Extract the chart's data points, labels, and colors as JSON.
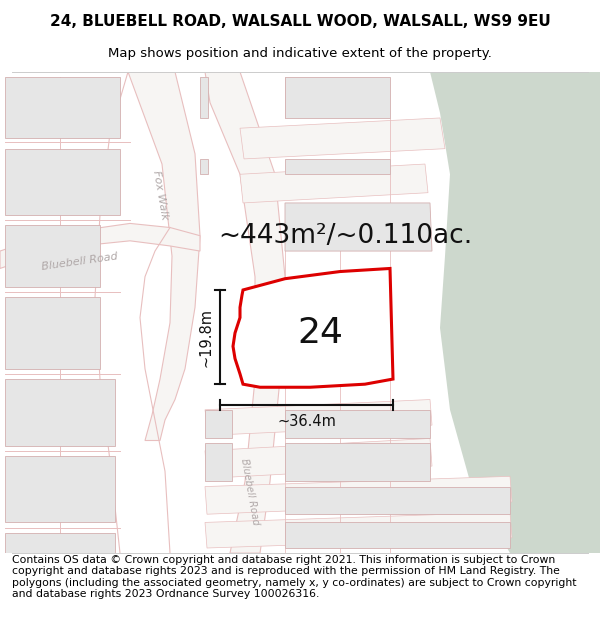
{
  "title_line1": "24, BLUEBELL ROAD, WALSALL WOOD, WALSALL, WS9 9EU",
  "title_line2": "Map shows position and indicative extent of the property.",
  "footer_text": "Contains OS data © Crown copyright and database right 2021. This information is subject to Crown copyright and database rights 2023 and is reproduced with the permission of HM Land Registry. The polygons (including the associated geometry, namely x, y co-ordinates) are subject to Crown copyright and database rights 2023 Ordnance Survey 100026316.",
  "area_label": "~443m²/~0.110ac.",
  "number_label": "24",
  "dim_vertical": "~19.8m",
  "dim_horizontal": "~36.4m",
  "bg_map_color": "#f2f0ee",
  "bg_green_color": "#cdd8cd",
  "road_outline_color": "#e8bfbf",
  "road_fill_color": "#f7f5f3",
  "property_outline_color": "#dd0000",
  "property_fill_color": "#ffffff",
  "block_fill_color": "#e6e6e6",
  "block_edge_color": "#d4b0b0",
  "dim_line_color": "#111111",
  "road_label_color": "#b0a8a8",
  "title_fontsize": 11,
  "subtitle_fontsize": 9.5,
  "footer_fontsize": 7.8,
  "number_fontsize": 26,
  "area_fontsize": 19,
  "dim_fontsize": 10.5,
  "road_label_fontsize": 8
}
